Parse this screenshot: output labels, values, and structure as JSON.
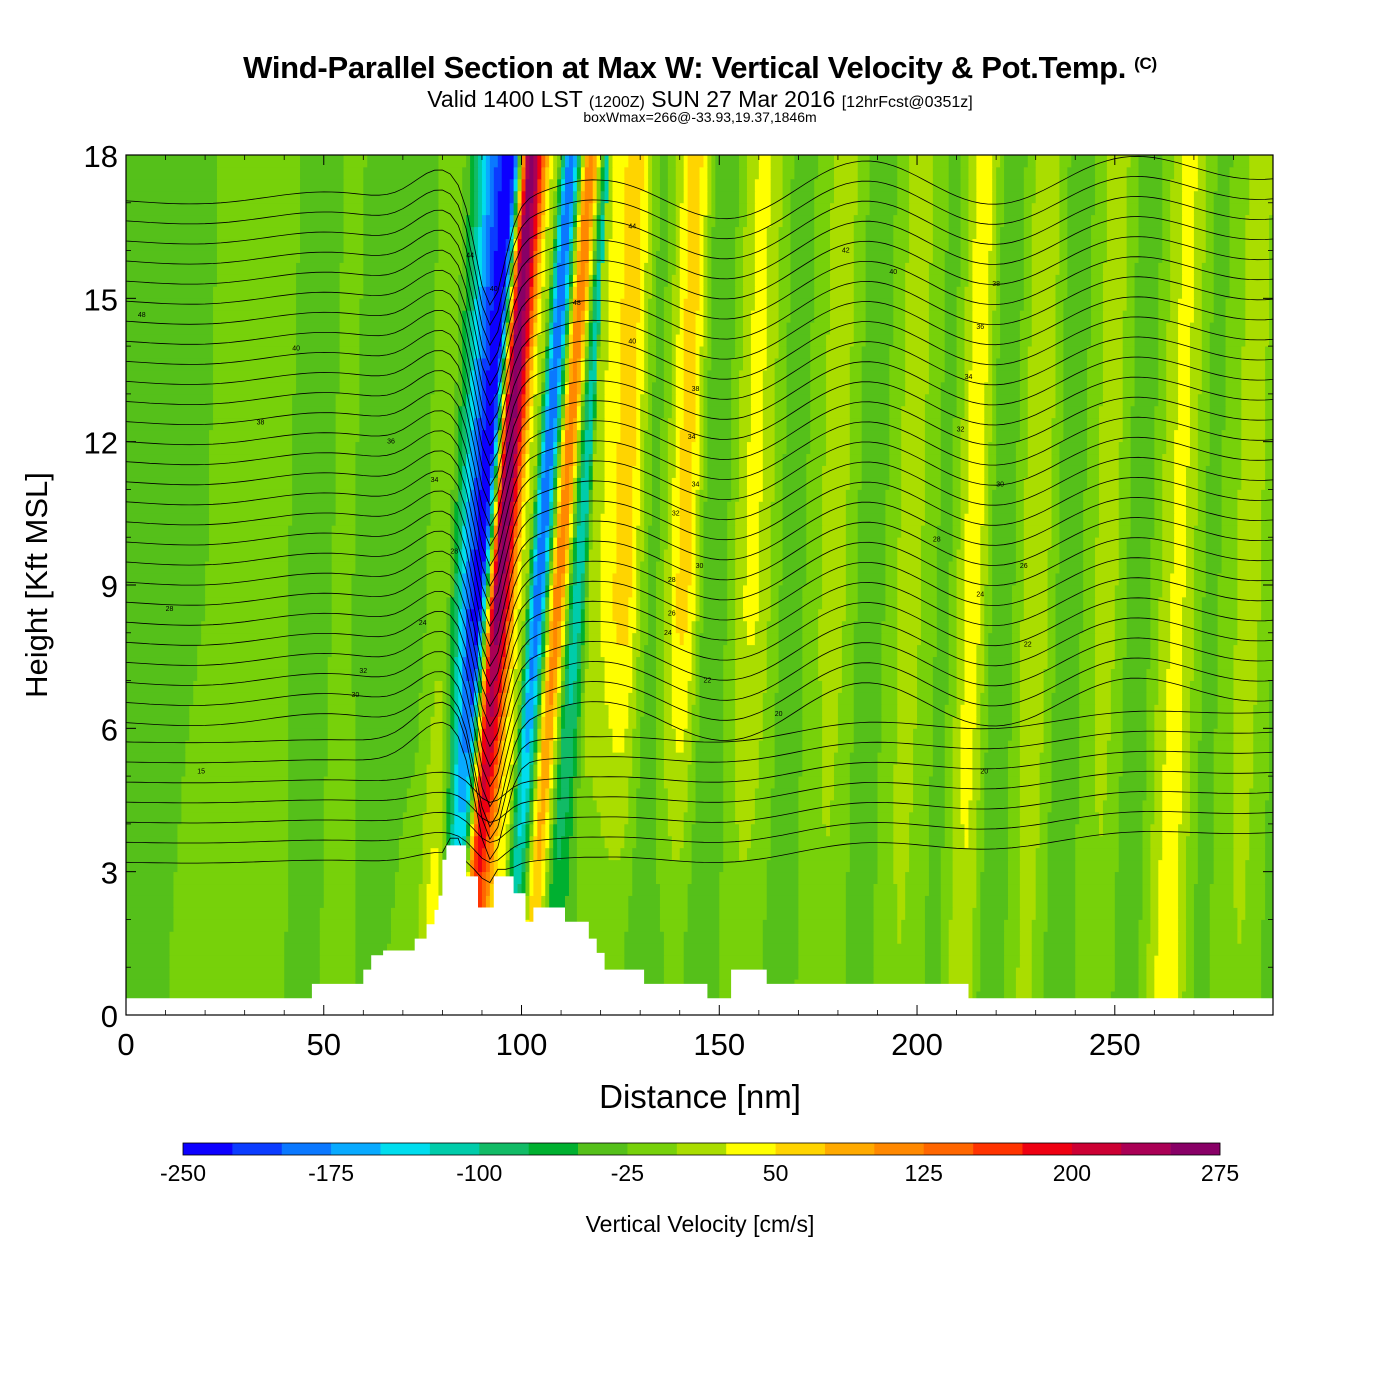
{
  "title": "Wind-Parallel Section at Max W: Vertical Velocity & Pot.Temp.",
  "title_corner": "(C)",
  "subtitle": {
    "main_a": "Valid 1400 LST",
    "small_a": "(1200Z)",
    "main_b": "SUN 27 Mar 2016",
    "small_b": "[12hrFcst@0351z]"
  },
  "subsubtitle": "boxWmax=266@-33.93,19.37,1846m",
  "chart_data": {
    "type": "heatmap",
    "xlabel": "Distance [nm]",
    "ylabel": "Height [Kft MSL]",
    "xlim": [
      0,
      290
    ],
    "ylim": [
      0,
      18
    ],
    "x_ticks": [
      0,
      50,
      100,
      150,
      200,
      250
    ],
    "y_ticks": [
      0,
      3,
      6,
      9,
      12,
      15,
      18
    ],
    "colorbar": {
      "label": "Vertical Velocity [cm/s]",
      "levels": [
        -250,
        -225,
        -200,
        -175,
        -150,
        -125,
        -100,
        -75,
        -50,
        -25,
        0,
        25,
        50,
        75,
        100,
        125,
        150,
        175,
        200,
        225,
        250,
        275,
        300
      ],
      "tick_labels": [
        "-250",
        "-175",
        "-100",
        "-25",
        "50",
        "125",
        "200",
        "275"
      ],
      "colors": [
        "#0c00ff",
        "#0b3cff",
        "#0a78ff",
        "#08aaff",
        "#00ddee",
        "#00ccaa",
        "#11bb66",
        "#00b030",
        "#55c01a",
        "#77d10a",
        "#aadd00",
        "#ffff00",
        "#ffd400",
        "#ffaa00",
        "#ff8800",
        "#ff6600",
        "#ff3300",
        "#ee0011",
        "#cc0033",
        "#aa0055",
        "#880066"
      ]
    },
    "bands": [
      {
        "x": 0,
        "base_w": -35,
        "peak_w": -35
      },
      {
        "x": 30,
        "base_w": -5,
        "peak_w": -20
      },
      {
        "x": 48,
        "base_w": -35,
        "peak_w": -30
      },
      {
        "x": 52,
        "base_w": -10,
        "peak_w": -20
      },
      {
        "x": 62,
        "base_w": -30,
        "peak_w": -40
      },
      {
        "x": 72,
        "base_w": -20,
        "peak_w": -30
      },
      {
        "x": 78,
        "base_w": 40,
        "peak_w": -10
      },
      {
        "x": 84,
        "base_w": -100,
        "peak_w": -240
      },
      {
        "x": 89,
        "base_w": 150,
        "peak_w": 266
      },
      {
        "x": 95,
        "base_w": 40,
        "peak_w": 20
      },
      {
        "x": 99,
        "base_w": -90,
        "peak_w": -200
      },
      {
        "x": 104,
        "base_w": 60,
        "peak_w": 120
      },
      {
        "x": 109,
        "base_w": -60,
        "peak_w": -120
      },
      {
        "x": 116,
        "base_w": -20,
        "peak_w": 20
      },
      {
        "x": 124,
        "base_w": -20,
        "peak_w": 60
      },
      {
        "x": 131,
        "base_w": -40,
        "peak_w": -30
      },
      {
        "x": 139,
        "base_w": -20,
        "peak_w": 60
      },
      {
        "x": 146,
        "base_w": -40,
        "peak_w": -50
      },
      {
        "x": 156,
        "base_w": -10,
        "peak_w": 30
      },
      {
        "x": 166,
        "base_w": -35,
        "peak_w": -35
      },
      {
        "x": 177,
        "base_w": -5,
        "peak_w": 10
      },
      {
        "x": 186,
        "base_w": -35,
        "peak_w": -40
      },
      {
        "x": 196,
        "base_w": 0,
        "peak_w": 10
      },
      {
        "x": 205,
        "base_w": -30,
        "peak_w": -30
      },
      {
        "x": 212,
        "base_w": 20,
        "peak_w": 40
      },
      {
        "x": 219,
        "base_w": -45,
        "peak_w": -45
      },
      {
        "x": 228,
        "base_w": 5,
        "peak_w": 20
      },
      {
        "x": 236,
        "base_w": -40,
        "peak_w": -40
      },
      {
        "x": 246,
        "base_w": -5,
        "peak_w": 10
      },
      {
        "x": 254,
        "base_w": -40,
        "peak_w": -40
      },
      {
        "x": 264,
        "base_w": 40,
        "peak_w": 30
      },
      {
        "x": 272,
        "base_w": -30,
        "peak_w": -30
      },
      {
        "x": 282,
        "base_w": 0,
        "peak_w": 10
      },
      {
        "x": 290,
        "base_w": -30,
        "peak_w": -30
      }
    ],
    "terrain": [
      {
        "x": 0,
        "h": 0.35
      },
      {
        "x": 47,
        "h": 0.35
      },
      {
        "x": 47,
        "h": 0.65
      },
      {
        "x": 60,
        "h": 0.65
      },
      {
        "x": 60,
        "h": 0.95
      },
      {
        "x": 62,
        "h": 0.95
      },
      {
        "x": 62,
        "h": 1.25
      },
      {
        "x": 65,
        "h": 1.25
      },
      {
        "x": 65,
        "h": 1.35
      },
      {
        "x": 73,
        "h": 1.35
      },
      {
        "x": 73,
        "h": 1.6
      },
      {
        "x": 76,
        "h": 1.6
      },
      {
        "x": 76,
        "h": 1.9
      },
      {
        "x": 78,
        "h": 1.9
      },
      {
        "x": 78,
        "h": 2.2
      },
      {
        "x": 79,
        "h": 2.2
      },
      {
        "x": 79,
        "h": 2.5
      },
      {
        "x": 80,
        "h": 2.5
      },
      {
        "x": 80,
        "h": 3.25
      },
      {
        "x": 81,
        "h": 3.25
      },
      {
        "x": 81,
        "h": 3.55
      },
      {
        "x": 86,
        "h": 3.55
      },
      {
        "x": 86,
        "h": 2.9
      },
      {
        "x": 89,
        "h": 2.9
      },
      {
        "x": 89,
        "h": 2.25
      },
      {
        "x": 93,
        "h": 2.25
      },
      {
        "x": 93,
        "h": 2.9
      },
      {
        "x": 98,
        "h": 2.9
      },
      {
        "x": 98,
        "h": 2.55
      },
      {
        "x": 101,
        "h": 2.55
      },
      {
        "x": 101,
        "h": 1.95
      },
      {
        "x": 103,
        "h": 1.95
      },
      {
        "x": 103,
        "h": 2.25
      },
      {
        "x": 111,
        "h": 2.25
      },
      {
        "x": 111,
        "h": 1.95
      },
      {
        "x": 117,
        "h": 1.95
      },
      {
        "x": 117,
        "h": 1.6
      },
      {
        "x": 119,
        "h": 1.6
      },
      {
        "x": 119,
        "h": 1.3
      },
      {
        "x": 121,
        "h": 1.3
      },
      {
        "x": 121,
        "h": 0.95
      },
      {
        "x": 131,
        "h": 0.95
      },
      {
        "x": 131,
        "h": 0.65
      },
      {
        "x": 147,
        "h": 0.65
      },
      {
        "x": 147,
        "h": 0.35
      },
      {
        "x": 153,
        "h": 0.35
      },
      {
        "x": 153,
        "h": 0.95
      },
      {
        "x": 162,
        "h": 0.95
      },
      {
        "x": 162,
        "h": 0.65
      },
      {
        "x": 213,
        "h": 0.65
      },
      {
        "x": 213,
        "h": 0.35
      },
      {
        "x": 290,
        "h": 0.35
      }
    ],
    "theta_labels": [
      {
        "x": 4,
        "y": 14.65,
        "text": "48"
      },
      {
        "x": 43,
        "y": 13.95,
        "text": "40"
      },
      {
        "x": 34,
        "y": 12.4,
        "text": "38"
      },
      {
        "x": 67,
        "y": 12.0,
        "text": "36"
      },
      {
        "x": 78,
        "y": 11.2,
        "text": "34"
      },
      {
        "x": 11,
        "y": 8.5,
        "text": "28"
      },
      {
        "x": 60,
        "y": 7.2,
        "text": "32"
      },
      {
        "x": 58,
        "y": 6.7,
        "text": "30"
      },
      {
        "x": 19,
        "y": 5.1,
        "text": "15"
      },
      {
        "x": 75,
        "y": 8.2,
        "text": "24"
      },
      {
        "x": 83,
        "y": 9.7,
        "text": "28"
      },
      {
        "x": 87,
        "y": 15.9,
        "text": "44"
      },
      {
        "x": 93,
        "y": 15.2,
        "text": "40"
      },
      {
        "x": 114,
        "y": 14.9,
        "text": "48"
      },
      {
        "x": 128,
        "y": 16.5,
        "text": "44"
      },
      {
        "x": 128,
        "y": 14.1,
        "text": "40"
      },
      {
        "x": 144,
        "y": 13.1,
        "text": "38"
      },
      {
        "x": 143,
        "y": 12.1,
        "text": "34"
      },
      {
        "x": 144,
        "y": 11.1,
        "text": "34"
      },
      {
        "x": 139,
        "y": 10.5,
        "text": "32"
      },
      {
        "x": 145,
        "y": 9.4,
        "text": "30"
      },
      {
        "x": 138,
        "y": 9.1,
        "text": "28"
      },
      {
        "x": 138,
        "y": 8.4,
        "text": "26"
      },
      {
        "x": 137,
        "y": 8.0,
        "text": "24"
      },
      {
        "x": 147,
        "y": 7.0,
        "text": "22"
      },
      {
        "x": 165,
        "y": 6.3,
        "text": "20"
      },
      {
        "x": 182,
        "y": 16.0,
        "text": "42"
      },
      {
        "x": 194,
        "y": 15.55,
        "text": "40"
      },
      {
        "x": 220,
        "y": 15.3,
        "text": "38"
      },
      {
        "x": 216,
        "y": 14.4,
        "text": "36"
      },
      {
        "x": 213,
        "y": 13.35,
        "text": "34"
      },
      {
        "x": 211,
        "y": 12.25,
        "text": "32"
      },
      {
        "x": 221,
        "y": 11.1,
        "text": "30"
      },
      {
        "x": 205,
        "y": 9.95,
        "text": "28"
      },
      {
        "x": 227,
        "y": 9.4,
        "text": "26"
      },
      {
        "x": 216,
        "y": 8.8,
        "text": "24"
      },
      {
        "x": 228,
        "y": 7.75,
        "text": "22"
      },
      {
        "x": 217,
        "y": 5.1,
        "text": "20"
      }
    ]
  }
}
